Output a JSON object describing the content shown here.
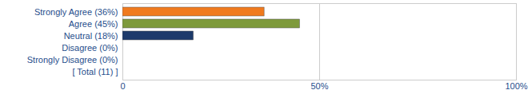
{
  "chart_data": {
    "type": "bar",
    "orientation": "horizontal",
    "categories": [
      "Strongly Agree (36%)",
      "Agree (45%)",
      "Neutral (18%)",
      "Disagree (0%)",
      "Strongly Disagree (0%)",
      "[ Total (11) ]"
    ],
    "values": [
      36,
      45,
      18,
      0,
      0,
      null
    ],
    "colors": [
      "#f07a1e",
      "#7e9a3c",
      "#1d3a6b",
      "#999999",
      "#999999",
      "#999999"
    ],
    "xlim": [
      0,
      100
    ],
    "xticks": [
      0,
      {
        "value": 50,
        "label": "50%"
      },
      {
        "value": 100,
        "label": "100%"
      }
    ],
    "grid": true
  }
}
